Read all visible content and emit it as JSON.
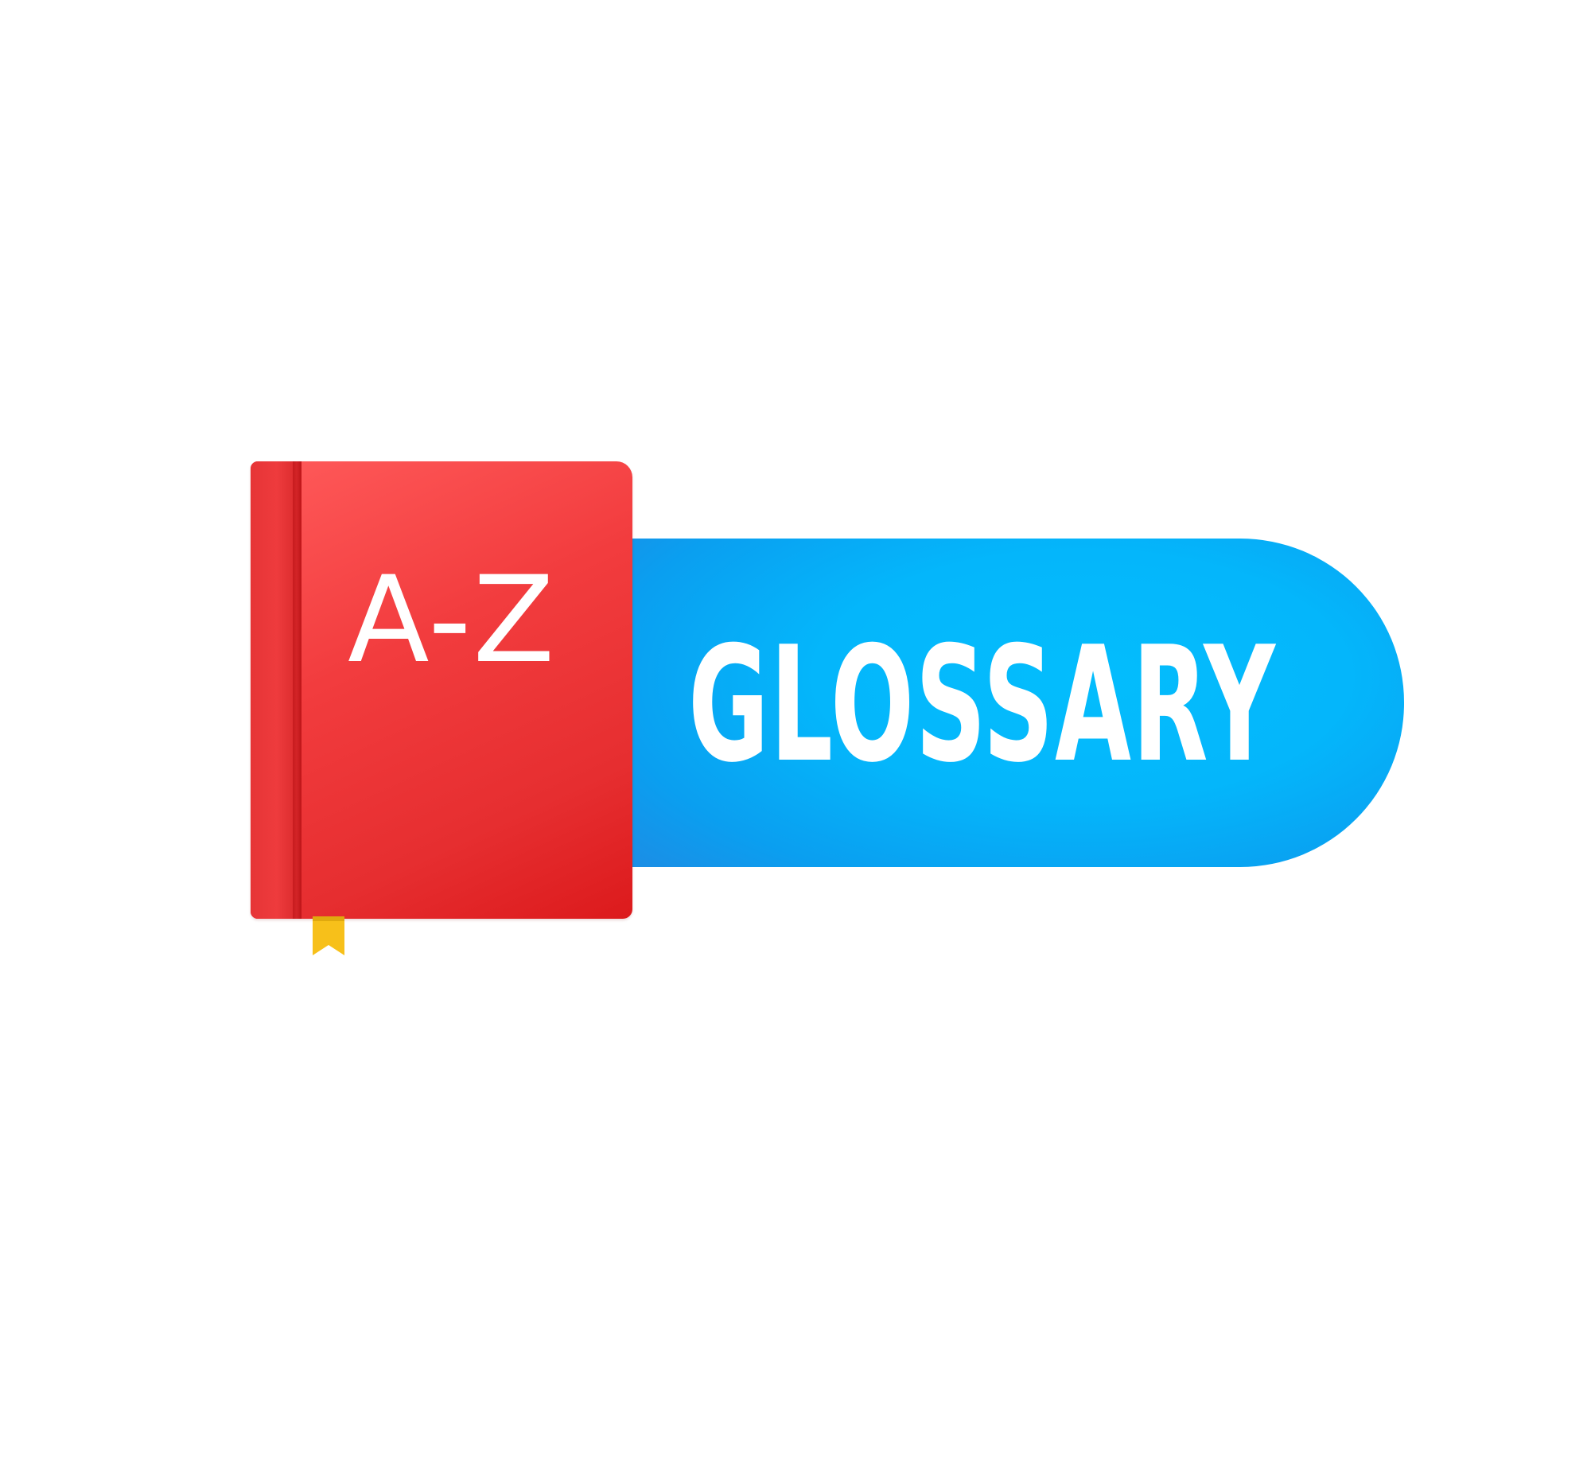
{
  "banner": {
    "label": "GLOSSARY",
    "color": "#04b6fb"
  },
  "book": {
    "title": "A-Z",
    "cover_color": "#ef3a3c",
    "ribbon_color": "#f7c01a",
    "icon": "book-icon"
  }
}
